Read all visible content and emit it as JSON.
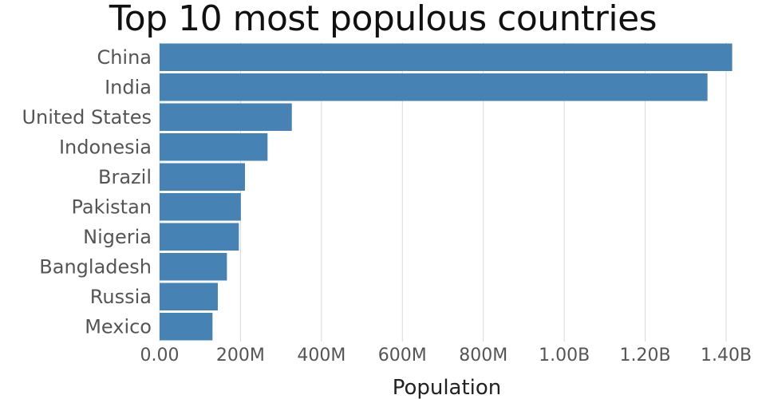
{
  "chart_data": {
    "type": "bar",
    "orientation": "horizontal",
    "title": "Top 10 most populous countries",
    "xlabel": "Population",
    "ylabel": "",
    "categories": [
      "China",
      "India",
      "United States",
      "Indonesia",
      "Brazil",
      "Pakistan",
      "Nigeria",
      "Bangladesh",
      "Russia",
      "Mexico"
    ],
    "values": [
      1415000000,
      1354000000,
      326800000,
      266800000,
      211000000,
      200800000,
      195900000,
      166400000,
      143900000,
      130800000
    ],
    "xlim": [
      0,
      1400000000
    ],
    "x_ticks": [
      0,
      200000000,
      400000000,
      600000000,
      800000000,
      1000000000,
      1200000000,
      1400000000
    ],
    "x_tick_labels": [
      "0.00",
      "200M",
      "400M",
      "600M",
      "800M",
      "1.00B",
      "1.20B",
      "1.40B"
    ],
    "grid": "vertical",
    "legend": "none",
    "bar_color": "#4682b4"
  }
}
